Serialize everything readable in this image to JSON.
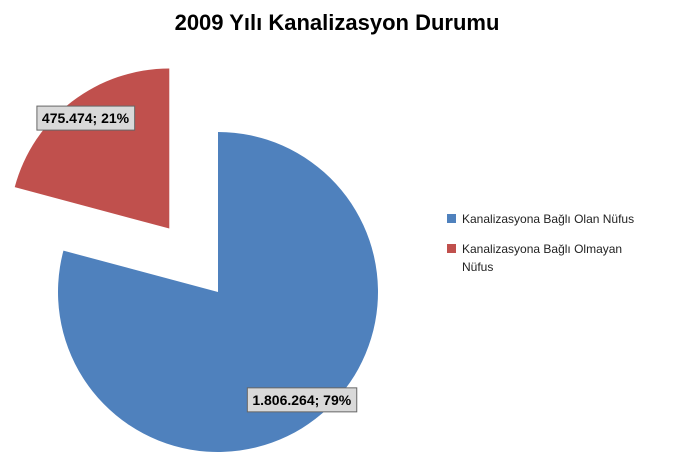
{
  "chart_data": {
    "type": "pie",
    "title": "2009 Yılı Kanalizasyon Durumu",
    "categories": [
      "Kanalizasyona Bağlı Olan Nüfus",
      "Kanalizasyona Bağlı Olmayan Nüfus"
    ],
    "values": [
      1806264,
      475474
    ],
    "value_labels": [
      "1.806.264; 79%",
      "475.474; 21%"
    ],
    "colors": [
      "#4f81bd",
      "#c0504d"
    ],
    "exploded": [
      false,
      true
    ],
    "legend": "right"
  }
}
